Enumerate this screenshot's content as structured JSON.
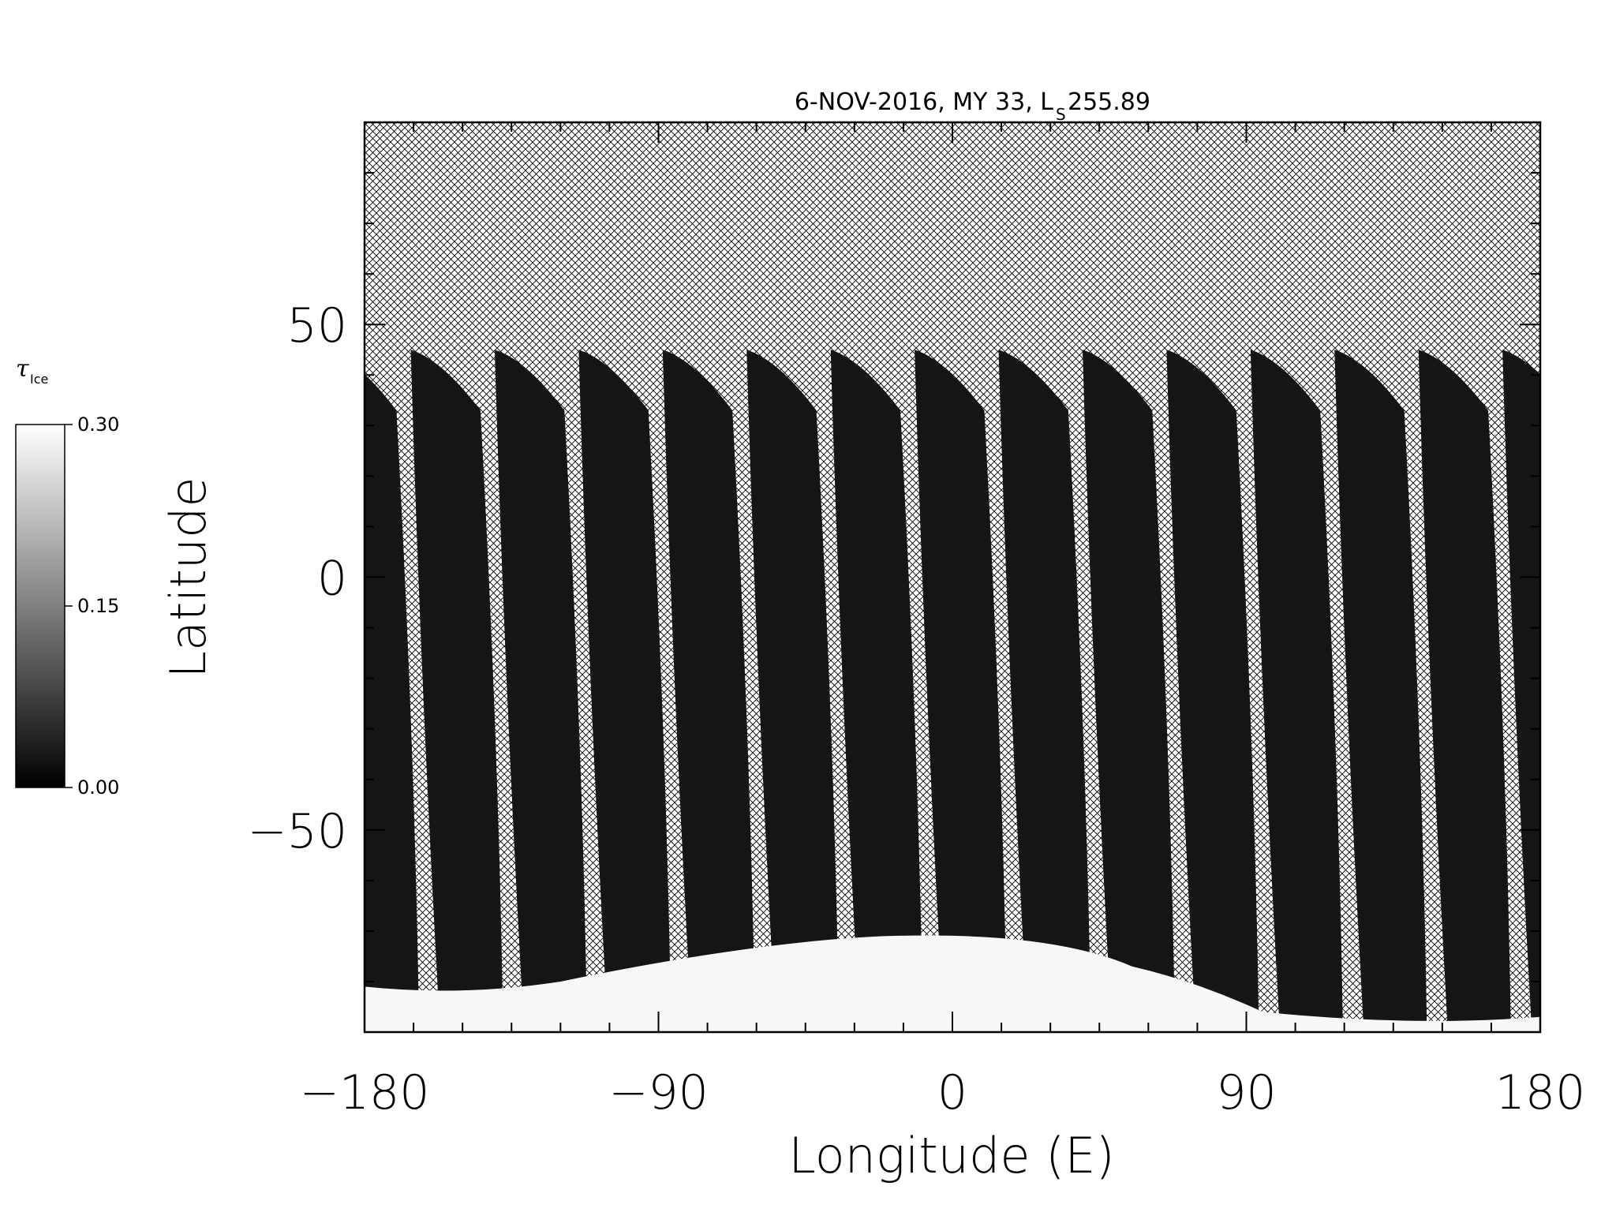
{
  "chart_data": {
    "type": "heatmap",
    "title_main": "6-NOV-2016, MY 33,  L",
    "title_sub": "S",
    "title_value": " 255.89",
    "xlabel": "Longitude (E)",
    "ylabel": "Latitude",
    "xlim": [
      -180,
      180
    ],
    "ylim": [
      -90,
      90
    ],
    "x_ticks": [
      -180,
      -90,
      0,
      90,
      180
    ],
    "x_tick_labels": [
      "−180",
      "−90",
      "0",
      "90",
      "180"
    ],
    "y_ticks": [
      -50,
      0,
      50
    ],
    "y_tick_labels": [
      "−50",
      "0",
      "50"
    ],
    "no_data_pattern": "crosshatch",
    "swath_count": 14,
    "swath_top_latitude": 45,
    "colorbar": {
      "title": "τ",
      "title_sub": "Ice",
      "min": 0.0,
      "max": 0.3,
      "tick_values": [
        0.3,
        0.15,
        0.0
      ],
      "tick_labels": [
        "0.30",
        "0.15",
        "0.00"
      ],
      "colormap": "grayscale"
    },
    "colors": {
      "swath": "#151515",
      "polar_cap": "#f7f7f7",
      "hatch": "#000000",
      "background": "#ffffff"
    }
  }
}
